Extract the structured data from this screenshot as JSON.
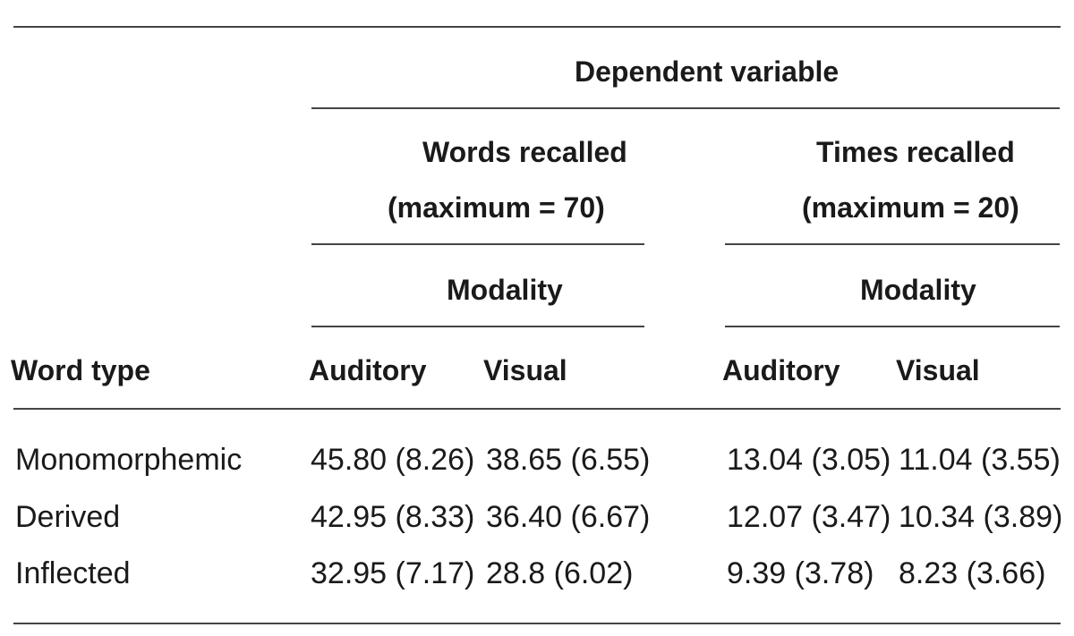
{
  "table": {
    "header": {
      "dependent_variable": "Dependent variable",
      "words_recalled": "Words recalled",
      "words_recalled_max": "(maximum = 70)",
      "times_recalled": "Times recalled",
      "times_recalled_max": "(maximum = 20)",
      "modality_1": "Modality",
      "modality_2": "Modality",
      "word_type": "Word type",
      "auditory_1": "Auditory",
      "visual_1": "Visual",
      "auditory_2": "Auditory",
      "visual_2": "Visual"
    },
    "rows": [
      {
        "word_type": "Monomorphemic",
        "words_auditory": "45.80 (8.26)",
        "words_visual": "38.65 (6.55)",
        "times_auditory": "13.04 (3.05)",
        "times_visual": "11.04 (3.55)"
      },
      {
        "word_type": "Derived",
        "words_auditory": "42.95 (8.33)",
        "words_visual": "36.40 (6.67)",
        "times_auditory": "12.07 (3.47)",
        "times_visual": "10.34 (3.89)"
      },
      {
        "word_type": "Inflected",
        "words_auditory": "32.95 (7.17)",
        "words_visual": "28.8 (6.02)",
        "times_auditory": "9.39 (3.78)",
        "times_visual": "8.23 (3.66)"
      }
    ]
  }
}
